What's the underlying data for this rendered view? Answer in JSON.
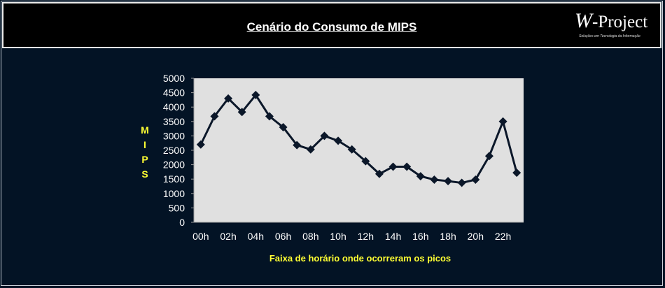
{
  "header": {
    "title": "Cenário do Consumo de MIPS",
    "logo_text": "W-Project",
    "logo_tagline": "Soluções em Tecnologia da Informação"
  },
  "colors": {
    "background": "#031325",
    "plot_area": "#e0e0e0",
    "line": "#0b1729",
    "axis_labels": "#ffffff",
    "axis_titles": "#ffff33"
  },
  "chart_data": {
    "type": "line",
    "title": "",
    "xlabel": "Faixa de horário onde ocorreram os picos",
    "ylabel": "MIPS",
    "ylim": [
      0,
      5000
    ],
    "yticks": [
      0,
      500,
      1000,
      1500,
      2000,
      2500,
      3000,
      3500,
      4000,
      4500,
      5000
    ],
    "x_tick_labels": [
      "00h",
      "02h",
      "04h",
      "06h",
      "08h",
      "10h",
      "12h",
      "14h",
      "16h",
      "18h",
      "20h",
      "22h"
    ],
    "x": [
      "00h",
      "01h",
      "02h",
      "03h",
      "04h",
      "05h",
      "06h",
      "07h",
      "08h",
      "09h",
      "10h",
      "11h",
      "12h",
      "13h",
      "14h",
      "15h",
      "16h",
      "17h",
      "18h",
      "19h",
      "20h",
      "21h",
      "22h",
      "23h"
    ],
    "series": [
      {
        "values": [
          2700,
          3680,
          4300,
          3830,
          4420,
          3680,
          3300,
          2680,
          2530,
          3000,
          2830,
          2530,
          2120,
          1680,
          1930,
          1930,
          1600,
          1480,
          1430,
          1370,
          1480,
          2300,
          3500,
          1720
        ],
        "marker": "diamond"
      }
    ],
    "grid": false,
    "legend": "none"
  }
}
